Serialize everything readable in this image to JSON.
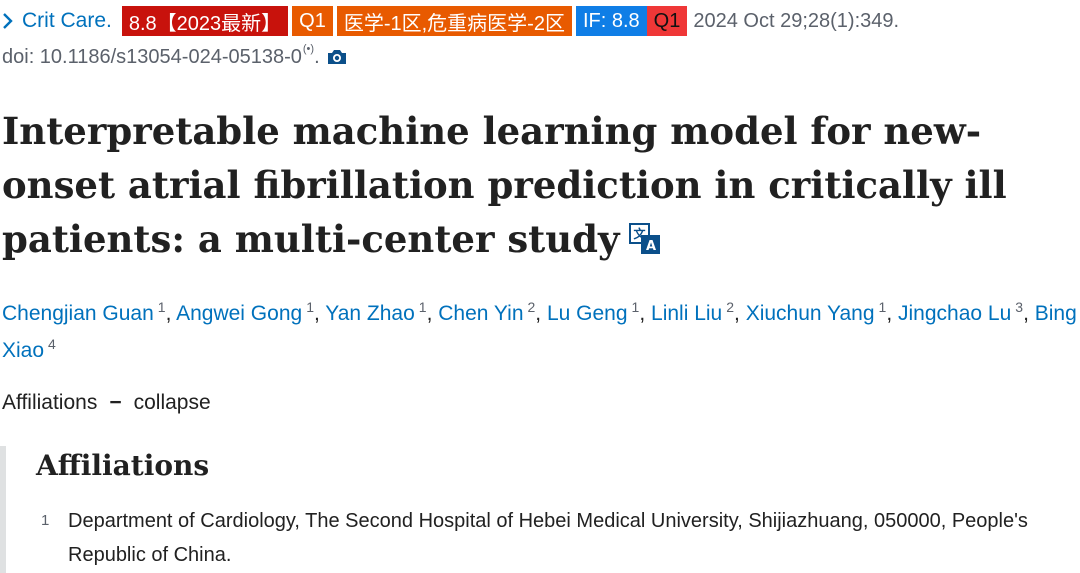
{
  "citation": {
    "journal": "Crit Care.",
    "badges": {
      "impact_year": "8.8【2023最新】",
      "quartile": "Q1",
      "category": "医学-1区,危重病医学-2区",
      "impact_factor": "IF: 8.8",
      "quartile2": "Q1"
    },
    "date_volume": "2024 Oct 29;28(1):349.",
    "doi": "doi: 10.1186/s13054-024-05138-0",
    "doi_suffix": "(•)",
    "doi_end": "."
  },
  "article": {
    "title": "Interpretable machine learning model for new-onset atrial fibrillation prediction in critically ill patients: a multi-center study"
  },
  "authors": [
    {
      "name": "Chengjian Guan",
      "aff": "1",
      "sep": ", "
    },
    {
      "name": "Angwei Gong",
      "aff": "1",
      "sep": ", "
    },
    {
      "name": "Yan Zhao",
      "aff": "1",
      "sep": ", "
    },
    {
      "name": "Chen Yin",
      "aff": "2",
      "sep": ", "
    },
    {
      "name": "Lu Geng",
      "aff": "1",
      "sep": ", "
    },
    {
      "name": "Linli Liu",
      "aff": "2",
      "sep": ", "
    },
    {
      "name": "Xiuchun Yang",
      "aff": "1",
      "sep": ", "
    },
    {
      "name": "Jingchao Lu",
      "aff": "3",
      "sep": ", "
    },
    {
      "name": "Bing Xiao",
      "aff": "4",
      "sep": ""
    }
  ],
  "affiliations_toggle": {
    "label": "Affiliations",
    "dash": "−",
    "action": "collapse"
  },
  "affiliations": {
    "heading": "Affiliations",
    "items": [
      {
        "num": "1",
        "text": "Department of Cardiology, The Second Hospital of Hebei Medical University, Shijiazhuang, 050000, People's Republic of China."
      }
    ]
  },
  "colors": {
    "link": "#0071bc",
    "badge_if_year": "#c8120c",
    "badge_quartile": "#e85a00",
    "badge_impact": "#0f7ee6",
    "badge_quartile2": "#ef3737"
  },
  "icons": [
    "chevron-right-icon",
    "camera-icon",
    "translate-icon"
  ]
}
